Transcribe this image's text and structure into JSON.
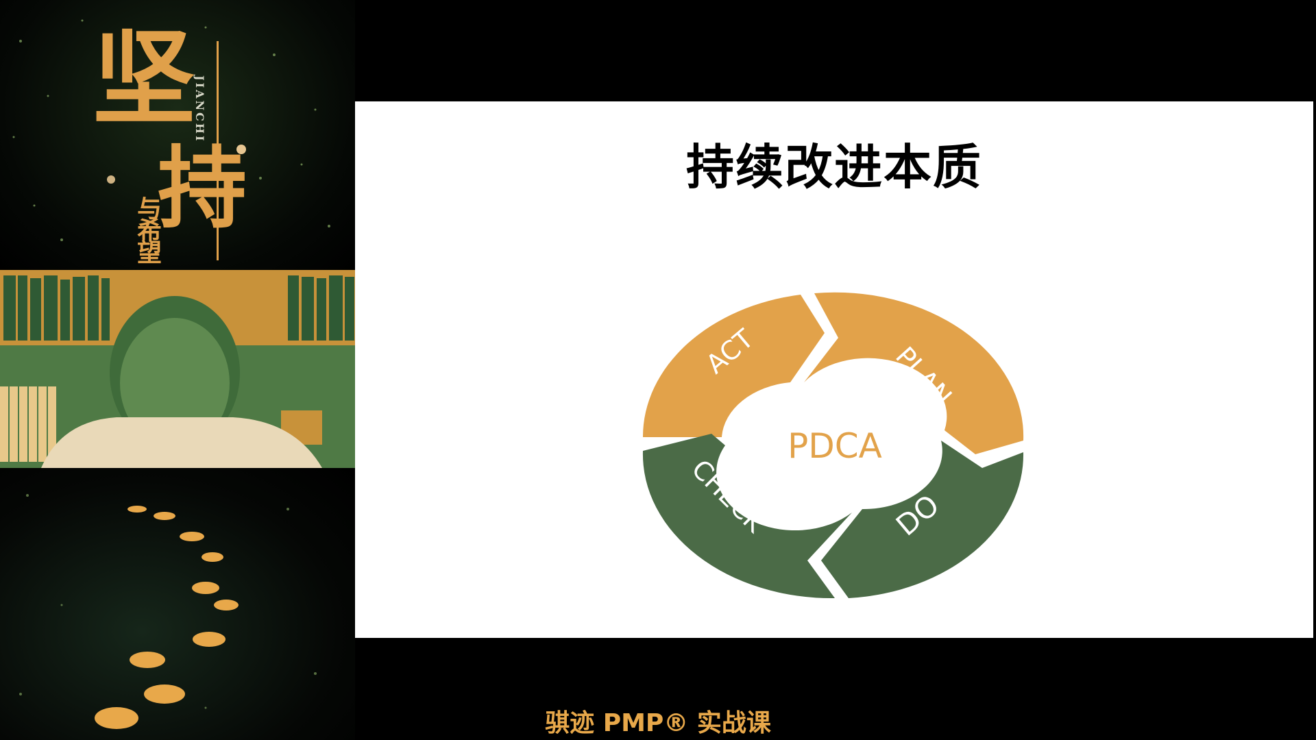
{
  "poster": {
    "main_chars": [
      "坚",
      "持"
    ],
    "pinyin": "JIANCHI",
    "subtitle_chars": [
      "与",
      "希",
      "望"
    ]
  },
  "slide": {
    "title": "持续改进本质",
    "cycle": {
      "center": "PDCA",
      "segments": [
        {
          "label": "ACT",
          "color": "#E2A24A"
        },
        {
          "label": "PLAN",
          "color": "#E2A24A"
        },
        {
          "label": "DO",
          "color": "#4B6B47"
        },
        {
          "label": "CHECK",
          "color": "#4B6B47"
        }
      ],
      "center_text_color": "#E2A24A"
    }
  },
  "footer": {
    "title": "骐迹 PMP® 实战课"
  },
  "colors": {
    "accent_orange": "#E2A24A",
    "accent_green": "#4B6B47"
  }
}
